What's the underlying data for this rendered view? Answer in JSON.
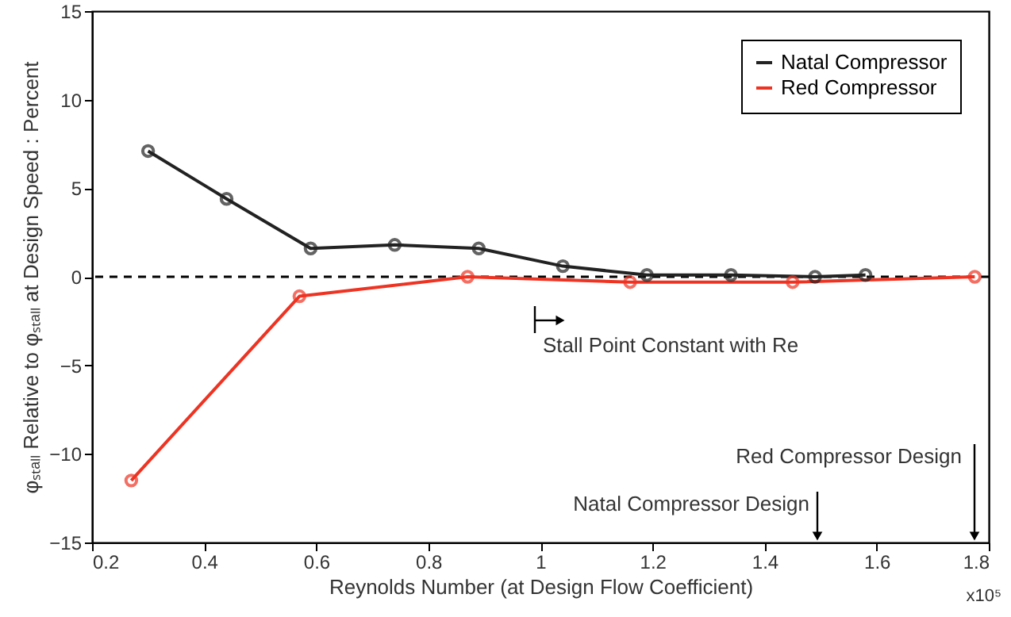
{
  "chart_data": {
    "type": "line",
    "xlabel": "Reynolds Number (at Design Flow Coefficient)",
    "ylabel": "φₛₜₐₗₗ Relative to φₛₜₐₗₗ at Design Speed : Percent",
    "series": [
      {
        "name": "Natal Compressor",
        "color": "#222222",
        "x": [
          0.3,
          0.44,
          0.59,
          0.74,
          0.89,
          1.04,
          1.19,
          1.34,
          1.49,
          1.58
        ],
        "values": [
          7.1,
          4.4,
          1.6,
          1.8,
          1.6,
          0.6,
          0.1,
          0.1,
          0.0,
          0.1
        ]
      },
      {
        "name": "Red Compressor",
        "color": "#ee3322",
        "x": [
          0.27,
          0.57,
          0.87,
          1.16,
          1.45,
          1.775
        ],
        "values": [
          -11.5,
          -1.1,
          0.0,
          -0.3,
          -0.3,
          0.0
        ]
      }
    ],
    "xlim": [
      0.2,
      1.8
    ],
    "xticks": [
      0.2,
      0.4,
      0.6,
      0.8,
      1,
      1.2,
      1.4,
      1.6,
      1.8
    ],
    "ylim": [
      -15,
      15
    ],
    "yticks": [
      -15,
      -10,
      -5,
      0,
      5,
      10,
      15
    ],
    "ref_lines": [
      {
        "axis": "y",
        "value": 0,
        "line_style": "dashed",
        "color": "#000000"
      }
    ],
    "annotations": [
      "Stall Point Constant with Re",
      "Natal Compressor Design",
      "Red Compressor Design",
      "x10⁵"
    ],
    "marker": "circle",
    "line_style": "solid",
    "grid": false,
    "legend": "top right"
  }
}
